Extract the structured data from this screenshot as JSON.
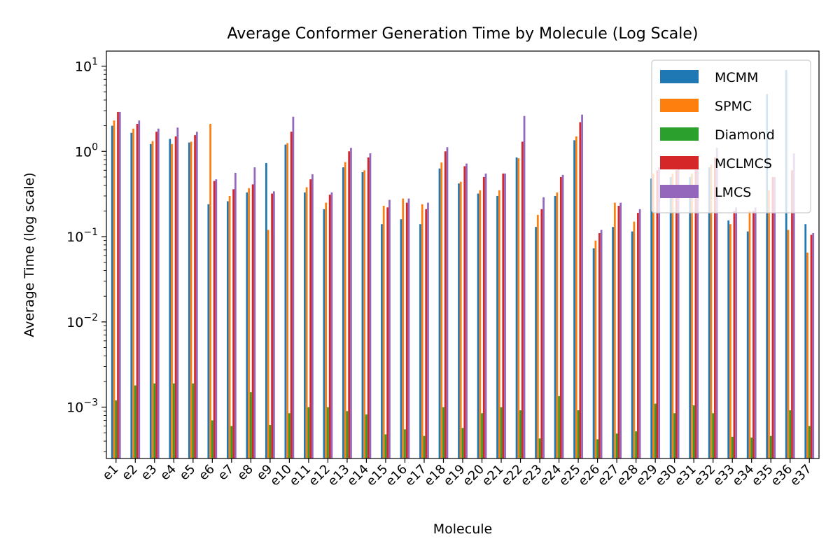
{
  "chart_data": {
    "type": "bar",
    "title": "Average Conformer Generation Time by Molecule (Log Scale)",
    "xlabel": "Molecule",
    "ylabel": "Average Time (log scale)",
    "yscale": "log",
    "ylim": [
      0.00025,
      15
    ],
    "ytick_values": [
      0.001,
      0.01,
      0.1,
      1,
      10
    ],
    "ytick_labels": [
      [
        "10",
        "−3"
      ],
      [
        "10",
        "−2"
      ],
      [
        "10",
        "−1"
      ],
      [
        "10",
        "0"
      ],
      [
        "10",
        "1"
      ]
    ],
    "legend_position": "top-right",
    "categories": [
      "e1",
      "e2",
      "e3",
      "e4",
      "e5",
      "e6",
      "e7",
      "e8",
      "e9",
      "e10",
      "e11",
      "e12",
      "e13",
      "e14",
      "e15",
      "e16",
      "e17",
      "e18",
      "e19",
      "e20",
      "e21",
      "e22",
      "e23",
      "e24",
      "e25",
      "e26",
      "e27",
      "e28",
      "e29",
      "e30",
      "e31",
      "e32",
      "e33",
      "e34",
      "e35",
      "e36",
      "e37"
    ],
    "series": [
      {
        "name": "MCMM",
        "color": "#1f77b4",
        "values": [
          2.0,
          1.65,
          1.22,
          1.4,
          1.27,
          0.24,
          0.26,
          0.33,
          0.73,
          1.2,
          0.33,
          0.21,
          0.65,
          0.57,
          0.14,
          0.16,
          0.14,
          0.63,
          0.42,
          0.32,
          0.3,
          0.85,
          0.13,
          0.3,
          1.35,
          0.073,
          0.13,
          0.115,
          0.48,
          0.5,
          0.5,
          0.65,
          0.155,
          0.115,
          4.7,
          9.0,
          0.14
        ]
      },
      {
        "name": "SPMC",
        "color": "#ff7f0e",
        "values": [
          2.3,
          1.85,
          1.32,
          1.22,
          1.3,
          2.1,
          0.3,
          0.37,
          0.12,
          1.25,
          0.38,
          0.25,
          0.75,
          0.6,
          0.23,
          0.28,
          0.24,
          0.74,
          0.44,
          0.35,
          0.35,
          0.83,
          0.18,
          0.33,
          1.5,
          0.09,
          0.25,
          0.15,
          0.55,
          0.55,
          0.55,
          0.7,
          0.14,
          0.2,
          0.35,
          0.12,
          0.065
        ]
      },
      {
        "name": "Diamond",
        "color": "#2ca02c",
        "values": [
          0.0012,
          0.0018,
          0.0019,
          0.0019,
          0.0019,
          0.0007,
          0.0006,
          0.0015,
          0.00062,
          0.00085,
          0.001,
          0.001,
          0.0009,
          0.00082,
          0.00048,
          0.00055,
          0.00046,
          0.001,
          0.00057,
          0.00085,
          0.001,
          0.00092,
          0.00043,
          0.00135,
          0.00092,
          0.00042,
          0.00049,
          0.00052,
          0.0011,
          0.00085,
          0.00105,
          0.00085,
          0.00045,
          0.00044,
          0.00046,
          0.00092,
          0.0006
        ]
      },
      {
        "name": "MCLMCS",
        "color": "#d62728",
        "values": [
          2.9,
          2.1,
          1.7,
          1.5,
          1.55,
          0.45,
          0.36,
          0.41,
          0.32,
          1.7,
          0.47,
          0.31,
          1.0,
          0.85,
          0.22,
          0.25,
          0.21,
          1.0,
          0.67,
          0.5,
          0.55,
          1.3,
          0.21,
          0.5,
          2.2,
          0.11,
          0.23,
          0.19,
          0.6,
          0.6,
          0.6,
          0.85,
          0.2,
          0.2,
          0.5,
          0.6,
          0.105
        ]
      },
      {
        "name": "LMCS",
        "color": "#9467bd",
        "values": [
          2.9,
          2.3,
          1.85,
          1.9,
          1.7,
          0.47,
          0.56,
          0.65,
          0.34,
          2.55,
          0.54,
          0.33,
          1.1,
          0.95,
          0.27,
          0.28,
          0.25,
          1.12,
          0.72,
          0.55,
          0.55,
          2.6,
          0.29,
          0.53,
          2.7,
          0.12,
          0.25,
          0.21,
          0.65,
          0.65,
          0.65,
          1.1,
          0.22,
          0.22,
          0.5,
          0.95,
          0.11
        ]
      }
    ]
  }
}
